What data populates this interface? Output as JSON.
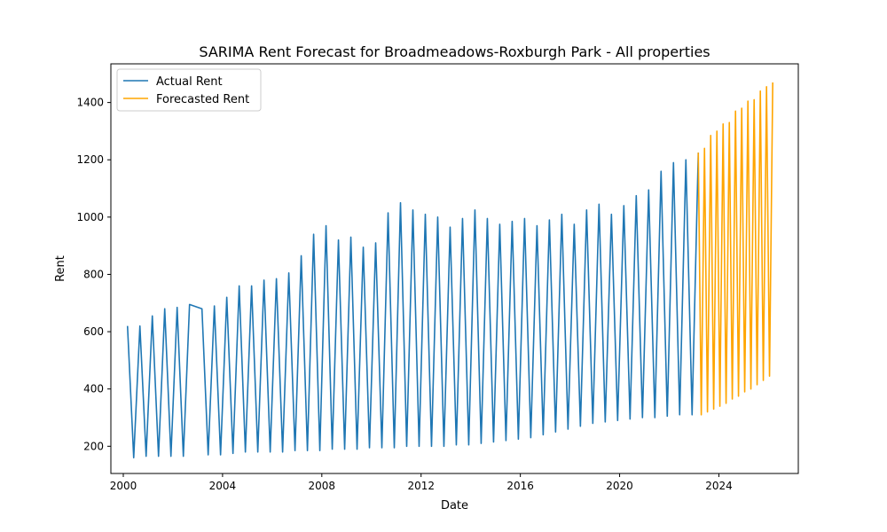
{
  "chart_data": {
    "type": "line",
    "title": "SARIMA Rent Forecast for Broadmeadows-Roxburgh Park - All properties",
    "xlabel": "Date",
    "ylabel": "Rent",
    "xlim": [
      1999.5,
      2027.2
    ],
    "ylim": [
      105,
      1535
    ],
    "x_ticks": [
      2000,
      2004,
      2008,
      2012,
      2016,
      2020,
      2024
    ],
    "x_tick_labels": [
      "2000",
      "2004",
      "2008",
      "2012",
      "2016",
      "2020",
      "2024"
    ],
    "y_ticks": [
      200,
      400,
      600,
      800,
      1000,
      1200,
      1400
    ],
    "y_tick_labels": [
      "200",
      "400",
      "600",
      "800",
      "1000",
      "1200",
      "1400"
    ],
    "grid": false,
    "legend": {
      "placement": "top-left",
      "entries": [
        "Actual Rent",
        "Forecasted Rent"
      ]
    },
    "series": [
      {
        "name": "Actual Rent",
        "color": "#1f77b4",
        "x": [
          2000.17,
          2000.42,
          2000.67,
          2000.92,
          2001.17,
          2001.42,
          2001.67,
          2001.92,
          2002.17,
          2002.42,
          2002.67,
          2003.17,
          2003.42,
          2003.67,
          2003.92,
          2004.17,
          2004.42,
          2004.67,
          2004.92,
          2005.17,
          2005.42,
          2005.67,
          2005.92,
          2006.17,
          2006.42,
          2006.67,
          2006.92,
          2007.17,
          2007.42,
          2007.67,
          2007.92,
          2008.17,
          2008.42,
          2008.67,
          2008.92,
          2009.17,
          2009.42,
          2009.67,
          2009.92,
          2010.17,
          2010.42,
          2010.67,
          2010.92,
          2011.17,
          2011.42,
          2011.67,
          2011.92,
          2012.17,
          2012.42,
          2012.67,
          2012.92,
          2013.17,
          2013.42,
          2013.67,
          2013.92,
          2014.17,
          2014.42,
          2014.67,
          2014.92,
          2015.17,
          2015.42,
          2015.67,
          2015.92,
          2016.17,
          2016.42,
          2016.67,
          2016.92,
          2017.17,
          2017.42,
          2017.67,
          2017.92,
          2018.17,
          2018.42,
          2018.67,
          2018.92,
          2019.17,
          2019.42,
          2019.67,
          2019.92,
          2020.17,
          2020.42,
          2020.67,
          2020.92,
          2021.17,
          2021.42,
          2021.67,
          2021.92,
          2022.17,
          2022.42,
          2022.67,
          2022.92,
          2023.17
        ],
        "values": [
          620,
          160,
          620,
          165,
          655,
          165,
          680,
          165,
          685,
          165,
          695,
          680,
          170,
          690,
          170,
          720,
          175,
          760,
          180,
          760,
          180,
          780,
          180,
          785,
          180,
          805,
          185,
          865,
          185,
          940,
          185,
          970,
          190,
          920,
          190,
          930,
          190,
          895,
          195,
          910,
          195,
          1015,
          195,
          1050,
          200,
          1025,
          200,
          1010,
          200,
          1000,
          200,
          965,
          205,
          995,
          205,
          1025,
          210,
          995,
          215,
          975,
          220,
          985,
          225,
          995,
          230,
          970,
          240,
          990,
          250,
          1010,
          260,
          975,
          270,
          1025,
          280,
          1045,
          285,
          1010,
          290,
          1040,
          295,
          1075,
          300,
          1095,
          300,
          1160,
          305,
          1190,
          310,
          1200,
          310,
          1225
        ]
      },
      {
        "name": "Forecasted Rent",
        "color": "#ffa500",
        "x": [
          2023.17,
          2023.29,
          2023.42,
          2023.54,
          2023.67,
          2023.79,
          2023.92,
          2024.04,
          2024.17,
          2024.29,
          2024.42,
          2024.54,
          2024.67,
          2024.79,
          2024.92,
          2025.04,
          2025.17,
          2025.29,
          2025.42,
          2025.54,
          2025.67,
          2025.79,
          2025.92,
          2026.04,
          2026.17
        ],
        "values": [
          1225,
          310,
          1240,
          320,
          1285,
          330,
          1300,
          340,
          1325,
          350,
          1330,
          365,
          1370,
          375,
          1380,
          390,
          1405,
          400,
          1410,
          415,
          1440,
          430,
          1455,
          445,
          1470
        ]
      }
    ]
  }
}
